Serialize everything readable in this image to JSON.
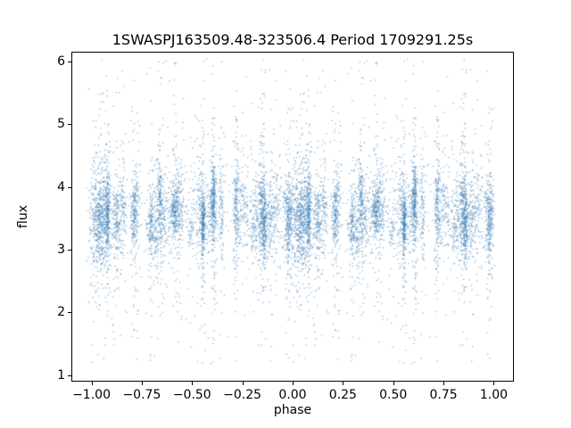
{
  "figure": {
    "title": "1SWASPJ163509.48-323506.4 Period 1709291.25s",
    "xlabel": "phase",
    "ylabel": "flux",
    "background": "#ffffff"
  },
  "chart_data": {
    "type": "scatter",
    "title": "1SWASPJ163509.48-323506.4 Period 1709291.25s",
    "xlabel": "phase",
    "ylabel": "flux",
    "xlim": [
      -1.1,
      1.1
    ],
    "ylim": [
      0.9,
      6.15
    ],
    "xticks": {
      "values": [
        -1.0,
        -0.75,
        -0.5,
        -0.25,
        0.0,
        0.25,
        0.5,
        0.75,
        1.0
      ],
      "labels": [
        "−1.00",
        "−0.75",
        "−0.50",
        "−0.25",
        "0.00",
        "0.25",
        "0.50",
        "0.75",
        "1.00"
      ]
    },
    "yticks": {
      "values": [
        1,
        2,
        3,
        4,
        5,
        6
      ],
      "labels": [
        "1",
        "2",
        "3",
        "4",
        "5",
        "6"
      ]
    },
    "legend": null,
    "grid": false,
    "point_color": "#4080b8",
    "point_alpha": 0.5,
    "marker_size_px": 1.4,
    "description": "Phase-folded light curve: ~10000 tiny blue points grouped in narrow vertical night-clusters across phase -1 to 1; flux concentrated between 3 and 4.5 with scatter tails reaching 1.2 and 6.0; the pattern on [-1,0] mirrors [0,1] (each point plotted at phase p and p-1).",
    "generator": {
      "seed": 42,
      "n_clusters": 46,
      "n_points": 5200,
      "width_min": 0.004,
      "width_max": 0.018,
      "flux_mean_range": [
        3.3,
        3.8
      ],
      "core_sigma": 0.27,
      "wide_sigma": 0.85,
      "wide_frac": 0.18,
      "outlier_frac": 0.05,
      "background_frac": 0.06,
      "flux_min": 1.2,
      "flux_max": 6.05
    }
  }
}
